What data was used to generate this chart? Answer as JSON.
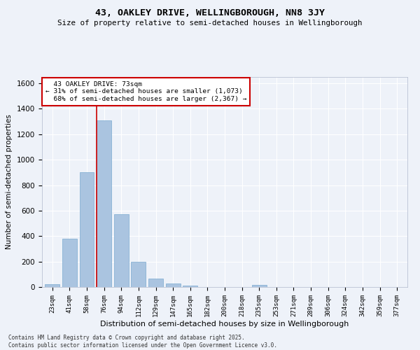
{
  "title": "43, OAKLEY DRIVE, WELLINGBOROUGH, NN8 3JY",
  "subtitle": "Size of property relative to semi-detached houses in Wellingborough",
  "xlabel": "Distribution of semi-detached houses by size in Wellingborough",
  "ylabel": "Number of semi-detached properties",
  "footer_line1": "Contains HM Land Registry data © Crown copyright and database right 2025.",
  "footer_line2": "Contains public sector information licensed under the Open Government Licence v3.0.",
  "property_size": 73,
  "property_label": "43 OAKLEY DRIVE: 73sqm",
  "pct_smaller": 31,
  "pct_larger": 68,
  "count_smaller": 1073,
  "count_larger": 2367,
  "bin_labels": [
    "23sqm",
    "41sqm",
    "58sqm",
    "76sqm",
    "94sqm",
    "112sqm",
    "129sqm",
    "147sqm",
    "165sqm",
    "182sqm",
    "200sqm",
    "218sqm",
    "235sqm",
    "253sqm",
    "271sqm",
    "289sqm",
    "306sqm",
    "324sqm",
    "342sqm",
    "359sqm",
    "377sqm"
  ],
  "bar_values": [
    20,
    380,
    900,
    1310,
    570,
    200,
    65,
    28,
    12,
    0,
    0,
    0,
    14,
    0,
    0,
    0,
    0,
    0,
    0,
    0,
    0
  ],
  "bar_color": "#aac4e0",
  "bar_edge_color": "#7aaad0",
  "red_line_bin_index": 3,
  "red_line_color": "#cc0000",
  "background_color": "#eef2f9",
  "grid_color": "#ffffff",
  "ylim": [
    0,
    1650
  ],
  "yticks": [
    0,
    200,
    400,
    600,
    800,
    1000,
    1200,
    1400,
    1600
  ]
}
